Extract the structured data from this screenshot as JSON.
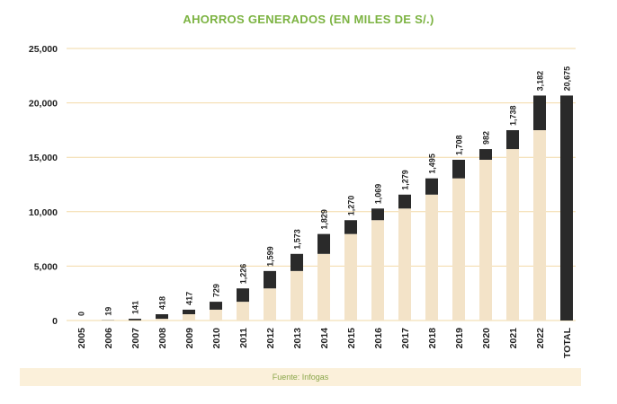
{
  "colors": {
    "title": "#7cb342",
    "base": "#f3e3c8",
    "increment": "#2a2a2a",
    "grid": "#f2d9a6",
    "text": "#222222",
    "footer_bg": "#fbf0da",
    "footer_text": "#8aa64a"
  },
  "footer": {
    "source": "Fuente: Infogas"
  },
  "chart_data": {
    "type": "bar",
    "title": "AHORROS GENERADOS (EN MILES DE S/.)",
    "xlabel": "",
    "ylabel": "",
    "ylim": [
      0,
      25000
    ],
    "yticks": [
      "0",
      "5,000",
      "10,000",
      "15,000",
      "20,000",
      "25,000"
    ],
    "grid": true,
    "stacked": true,
    "categories": [
      "2005",
      "2006",
      "2007",
      "2008",
      "2009",
      "2010",
      "2011",
      "2012",
      "2013",
      "2014",
      "2015",
      "2016",
      "2017",
      "2018",
      "2019",
      "2020",
      "2021",
      "2022",
      "TOTAL"
    ],
    "series": [
      {
        "values": [
          0,
          0,
          19,
          160,
          578,
          995,
          1724,
          2950,
          4549,
          6122,
          7951,
          9221,
          10290,
          11569,
          13064,
          14772,
          15754,
          17492,
          0
        ]
      },
      {
        "values": [
          0,
          19,
          141,
          418,
          417,
          729,
          1226,
          1599,
          1573,
          1829,
          1270,
          1069,
          1279,
          1495,
          1708,
          982,
          1738,
          3182,
          20675
        ]
      }
    ],
    "data_labels": [
      "0",
      "19",
      "141",
      "418",
      "417",
      "729",
      "1,226",
      "1,599",
      "1,573",
      "1,829",
      "1,270",
      "1,069",
      "1,279",
      "1,495",
      "1,708",
      "982",
      "1,738",
      "3,182",
      "20,675"
    ]
  }
}
